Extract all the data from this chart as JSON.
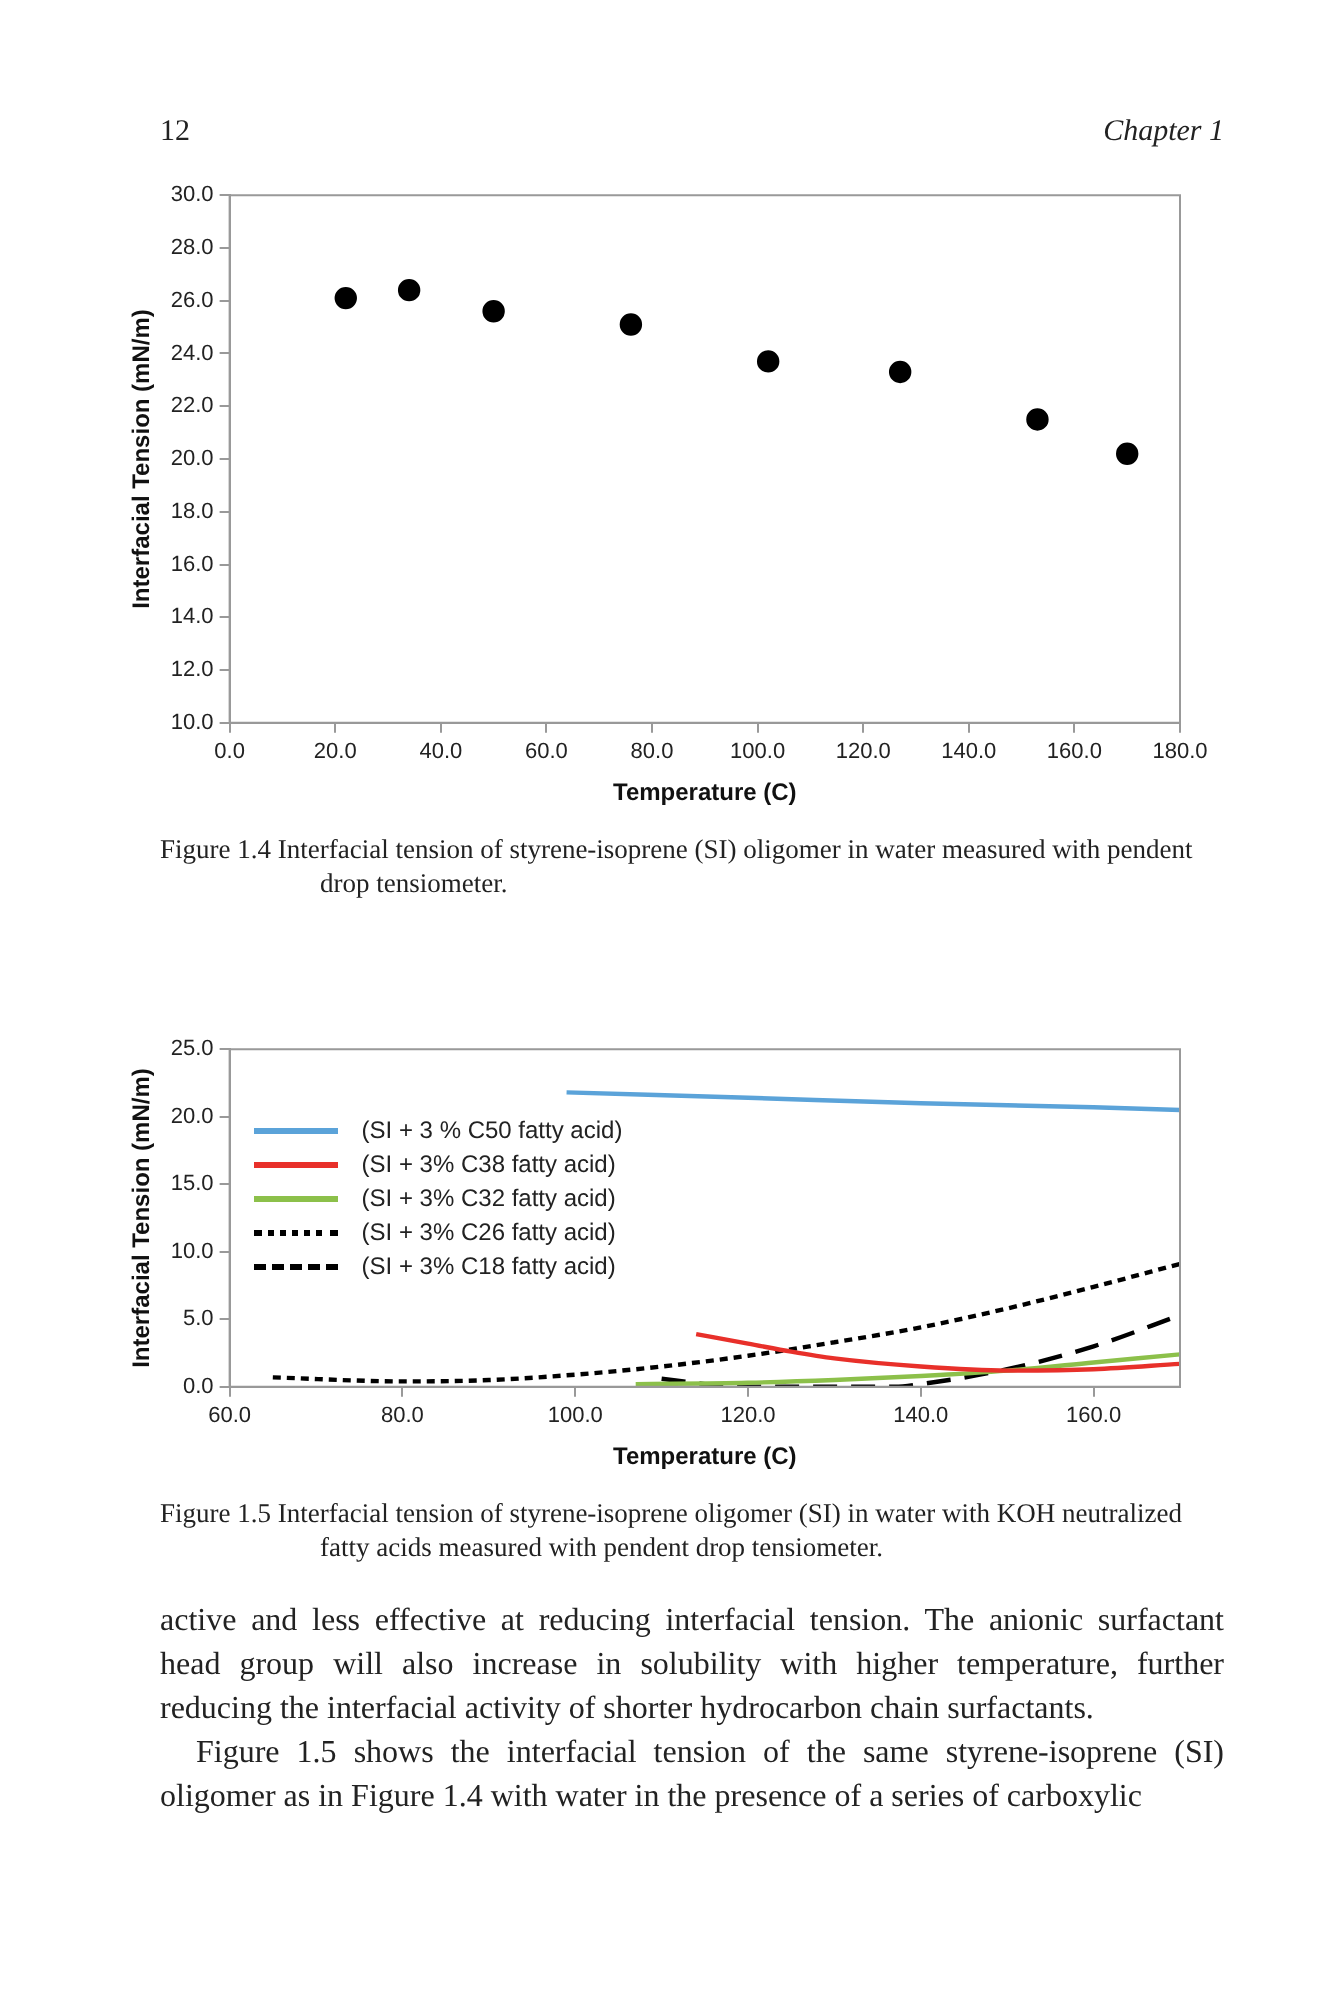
{
  "chart_data": [
    {
      "type": "other",
      "annotations": [
        "12",
        "Chapter 1"
      ]
    },
    {
      "type": "scatter",
      "xlabel": "Temperature (C)",
      "ylabel": "Interfacial Tension (mN/m)",
      "marker": "circle",
      "grid": false,
      "series": [
        {
          "color": "#000000",
          "x": [
            22,
            34,
            50,
            76,
            102,
            127,
            153,
            170
          ],
          "values": [
            26.1,
            26.4,
            25.6,
            25.1,
            23.7,
            23.3,
            21.5,
            20.2
          ]
        }
      ],
      "xlim": [
        0,
        180
      ],
      "xticks": [
        {
          "value": 0,
          "label": "0.0"
        },
        {
          "value": 20,
          "label": "20.0"
        },
        {
          "value": 40,
          "label": "40.0"
        },
        {
          "value": 60,
          "label": "60.0"
        },
        {
          "value": 80,
          "label": "80.0"
        },
        {
          "value": 100,
          "label": "100.0"
        },
        {
          "value": 120,
          "label": "120.0"
        },
        {
          "value": 140,
          "label": "140.0"
        },
        {
          "value": 160,
          "label": "160.0"
        },
        {
          "value": 180,
          "label": "180.0"
        }
      ],
      "ylim": [
        10,
        30
      ],
      "yticks": [
        {
          "value": 10,
          "label": "10.0"
        },
        {
          "value": 12,
          "label": "12.0"
        },
        {
          "value": 14,
          "label": "14.0"
        },
        {
          "value": 16,
          "label": "16.0"
        },
        {
          "value": 18,
          "label": "18.0"
        },
        {
          "value": 20,
          "label": "20.0"
        },
        {
          "value": 22,
          "label": "22.0"
        },
        {
          "value": 24,
          "label": "24.0"
        },
        {
          "value": 26,
          "label": "26.0"
        },
        {
          "value": 28,
          "label": "28.0"
        },
        {
          "value": 30,
          "label": "30.0"
        }
      ],
      "annotations": [
        "Figure 1.4   Interfacial tension of styrene-isoprene (SI) oligomer in water measured with pendent drop tensiometer."
      ]
    },
    {
      "type": "line",
      "xlabel": "Temperature (C)",
      "ylabel": "Interfacial Tension (mN/m)",
      "grid": false,
      "legend": "left",
      "series": [
        {
          "name": "(SI + 3 % C50 fatty acid)",
          "color": "#5ba3d9",
          "line_style": "solid",
          "x": [
            99,
            120,
            140,
            160,
            170
          ],
          "values": [
            21.8,
            21.4,
            21.0,
            20.7,
            20.5
          ]
        },
        {
          "name": "(SI + 3% C38 fatty acid)",
          "color": "#e8302a",
          "line_style": "solid",
          "x": [
            114,
            120,
            125,
            130,
            140,
            150,
            160,
            170
          ],
          "values": [
            3.9,
            3.2,
            2.6,
            2.1,
            1.5,
            1.2,
            1.3,
            1.7
          ]
        },
        {
          "name": "(SI + 3% C32 fatty acid)",
          "color": "#8cc04a",
          "line_style": "solid",
          "x": [
            107,
            120,
            130,
            140,
            150,
            160,
            170
          ],
          "values": [
            0.2,
            0.3,
            0.5,
            0.8,
            1.2,
            1.8,
            2.4
          ]
        },
        {
          "name": "(SI + 3% C26 fatty acid)",
          "color": "#000000",
          "line_style": "dotted",
          "x": [
            65,
            80,
            90,
            100,
            110,
            120,
            130,
            140,
            150,
            160,
            170
          ],
          "values": [
            0.7,
            0.4,
            0.5,
            0.9,
            1.5,
            2.3,
            3.3,
            4.4,
            5.8,
            7.4,
            9.1
          ]
        },
        {
          "name": "(SI + 3% C18 fatty acid)",
          "color": "#000000",
          "line_style": "dashed",
          "x": [
            110,
            115,
            118,
            137,
            140,
            150,
            160,
            170
          ],
          "values": [
            0.6,
            0.2,
            0,
            0,
            0.2,
            1.3,
            3.0,
            5.3
          ]
        }
      ],
      "xlim": [
        60,
        170
      ],
      "xticks": [
        {
          "value": 60,
          "label": "60.0"
        },
        {
          "value": 80,
          "label": "80.0"
        },
        {
          "value": 100,
          "label": "100.0"
        },
        {
          "value": 120,
          "label": "120.0"
        },
        {
          "value": 140,
          "label": "140.0"
        },
        {
          "value": 160,
          "label": "160.0"
        }
      ],
      "ylim": [
        0,
        25
      ],
      "yticks": [
        {
          "value": 0,
          "label": "0.0"
        },
        {
          "value": 5,
          "label": "5.0"
        },
        {
          "value": 10,
          "label": "10.0"
        },
        {
          "value": 15,
          "label": "15.0"
        },
        {
          "value": 20,
          "label": "20.0"
        },
        {
          "value": 25,
          "label": "25.0"
        }
      ],
      "annotations": [
        "Figure 1.5   Interfacial tension of styrene-isoprene oligomer (SI) in water with KOH neutralized fatty acids measured with pendent drop tensiometer."
      ]
    },
    {
      "type": "other",
      "annotations": [
        "active and less effective at reducing interfacial tension. The anionic surfactant head group will also increase in solubility with higher temperature, further reducing the interfacial activity of shorter hydrocarbon chain surfactants.",
        "Figure 1.5 shows the interfacial tension of the same styrene-isoprene (SI) oligomer as in Figure 1.4 with water in the presence of a series of carboxylic"
      ]
    }
  ]
}
